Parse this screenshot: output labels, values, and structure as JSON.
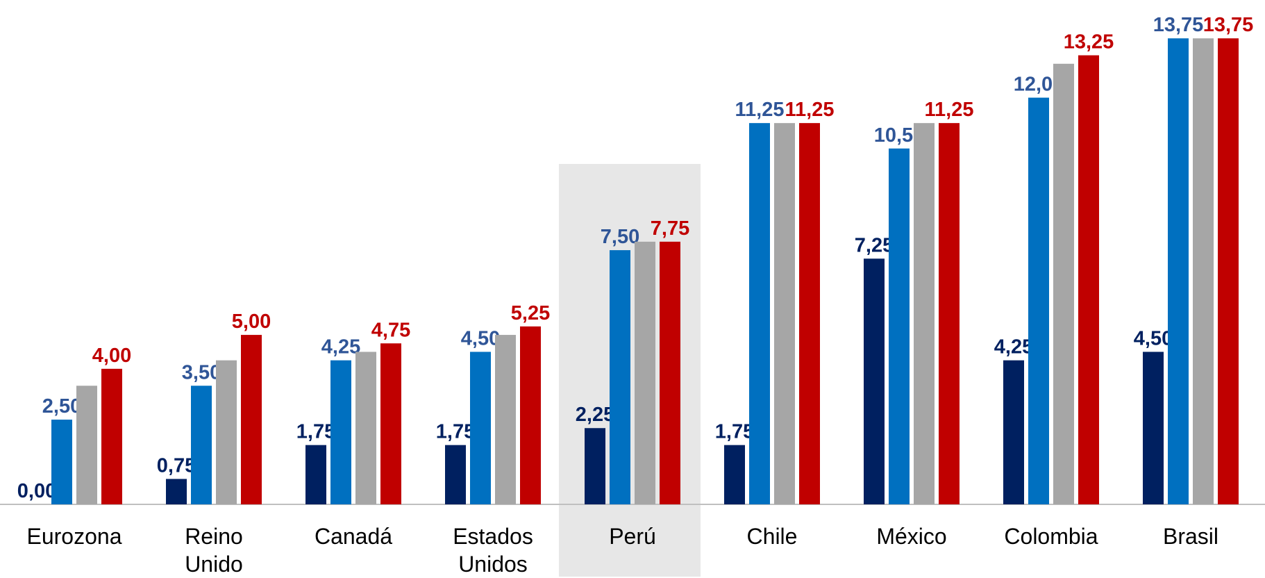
{
  "chart_data": {
    "type": "bar",
    "categories": [
      "Eurozona",
      "Reino Unido",
      "Canadá",
      "Estados Unidos",
      "Perú",
      "Chile",
      "México",
      "Colombia",
      "Brasil"
    ],
    "series": [
      {
        "color": "#002060",
        "label_color": "#002060",
        "values": [
          0.0,
          0.75,
          1.75,
          1.75,
          2.25,
          1.75,
          7.25,
          4.25,
          4.5
        ],
        "value_labels": [
          "0,00",
          "0,75",
          "1,75",
          "1,75",
          "2,25",
          "1,75",
          "7,25",
          "4,25",
          "4,50"
        ]
      },
      {
        "color": "#0070c0",
        "label_color": "#2f5597",
        "values": [
          2.5,
          3.5,
          4.25,
          4.5,
          7.5,
          11.25,
          10.5,
          12.0,
          13.75
        ],
        "value_labels": [
          "2,50",
          "3,50",
          "4,25",
          "4,50",
          "7,50",
          "11,25",
          "10,50",
          "12,00",
          "13,75"
        ]
      },
      {
        "color": "#a6a6a6",
        "values": [
          3.5,
          4.25,
          4.5,
          5.0,
          7.75,
          11.25,
          11.25,
          13.0,
          13.75
        ]
      },
      {
        "color": "#c00000",
        "label_color": "#c00000",
        "values": [
          4.0,
          5.0,
          4.75,
          5.25,
          7.75,
          11.25,
          11.25,
          13.25,
          13.75
        ],
        "value_labels": [
          "4,00",
          "5,00",
          "4,75",
          "5,25",
          "7,75",
          "11,25",
          "11,25",
          "13,25",
          "13,75"
        ]
      }
    ],
    "ylim": [
      0,
      14
    ]
  }
}
